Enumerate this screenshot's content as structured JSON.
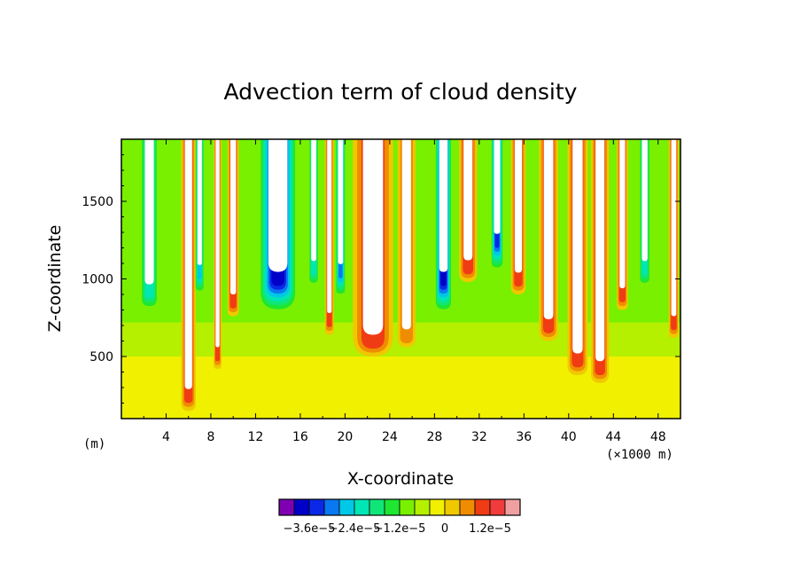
{
  "chart_data": {
    "type": "heatmap",
    "title": "Advection term of cloud density",
    "xlabel": "X-coordinate",
    "ylabel": "Z-coordinate",
    "x_unit_left": "(m)",
    "x_unit_right": "(×1000 m)",
    "xlim": [
      0,
      50
    ],
    "ylim": [
      100,
      1900
    ],
    "x_ticks": [
      4,
      8,
      12,
      16,
      20,
      24,
      28,
      32,
      36,
      40,
      44,
      48
    ],
    "x_tick_labels": [
      "4",
      "8",
      "12",
      "16",
      "20",
      "24",
      "28",
      "32",
      "36",
      "40",
      "44",
      "48"
    ],
    "y_ticks": [
      500,
      1000,
      1500
    ],
    "y_tick_labels": [
      "500",
      "1000",
      "1500"
    ],
    "colorbar": {
      "colors": [
        "#7f00b2",
        "#0000c8",
        "#0a28e6",
        "#0a78f0",
        "#00c8e6",
        "#00e6b4",
        "#10e678",
        "#1ee632",
        "#78f000",
        "#b4f000",
        "#f0f000",
        "#f0c800",
        "#f08c00",
        "#f03c14",
        "#f03c3c",
        "#f0a0a0"
      ],
      "tick_labels": [
        "−3.6e−5",
        "−2.4e−5",
        "−1.2e−5",
        "0",
        "1.2e−5"
      ],
      "tick_edges": [
        2,
        5,
        8,
        11,
        14
      ]
    },
    "background_levels": [
      {
        "zmin": 100,
        "zmax": 500,
        "color_index": 10
      },
      {
        "zmin": 500,
        "zmax": 720,
        "color_index": 9
      },
      {
        "zmin": 720,
        "zmax": 1900,
        "color_index": 8
      }
    ],
    "plumes": [
      {
        "x": 2.5,
        "z0": 800,
        "width": 1.6,
        "value_index": 5
      },
      {
        "x": 6.0,
        "z0": 150,
        "width": 1.3,
        "value_index": 13
      },
      {
        "x": 7.0,
        "z0": 900,
        "width": 0.8,
        "value_index": 4
      },
      {
        "x": 8.6,
        "z0": 420,
        "width": 0.7,
        "value_index": 13
      },
      {
        "x": 10.0,
        "z0": 760,
        "width": 1.0,
        "value_index": 13
      },
      {
        "x": 14.0,
        "z0": 780,
        "width": 3.4,
        "value_index": 1
      },
      {
        "x": 17.2,
        "z0": 950,
        "width": 0.9,
        "value_index": 5
      },
      {
        "x": 18.6,
        "z0": 640,
        "width": 0.8,
        "value_index": 13
      },
      {
        "x": 19.6,
        "z0": 880,
        "width": 0.9,
        "value_index": 3
      },
      {
        "x": 22.5,
        "z0": 500,
        "width": 3.6,
        "value_index": 13
      },
      {
        "x": 25.5,
        "z0": 560,
        "width": 1.6,
        "value_index": 12
      },
      {
        "x": 28.8,
        "z0": 780,
        "width": 1.5,
        "value_index": 1
      },
      {
        "x": 31.0,
        "z0": 980,
        "width": 1.6,
        "value_index": 13
      },
      {
        "x": 33.6,
        "z0": 1050,
        "width": 1.1,
        "value_index": 2
      },
      {
        "x": 35.5,
        "z0": 900,
        "width": 1.3,
        "value_index": 13
      },
      {
        "x": 38.2,
        "z0": 600,
        "width": 1.7,
        "value_index": 13
      },
      {
        "x": 40.8,
        "z0": 380,
        "width": 1.8,
        "value_index": 13
      },
      {
        "x": 42.8,
        "z0": 330,
        "width": 1.6,
        "value_index": 13
      },
      {
        "x": 44.8,
        "z0": 800,
        "width": 1.0,
        "value_index": 13
      },
      {
        "x": 46.8,
        "z0": 950,
        "width": 1.0,
        "value_index": 5
      },
      {
        "x": 49.4,
        "z0": 620,
        "width": 0.9,
        "value_index": 13
      }
    ]
  }
}
